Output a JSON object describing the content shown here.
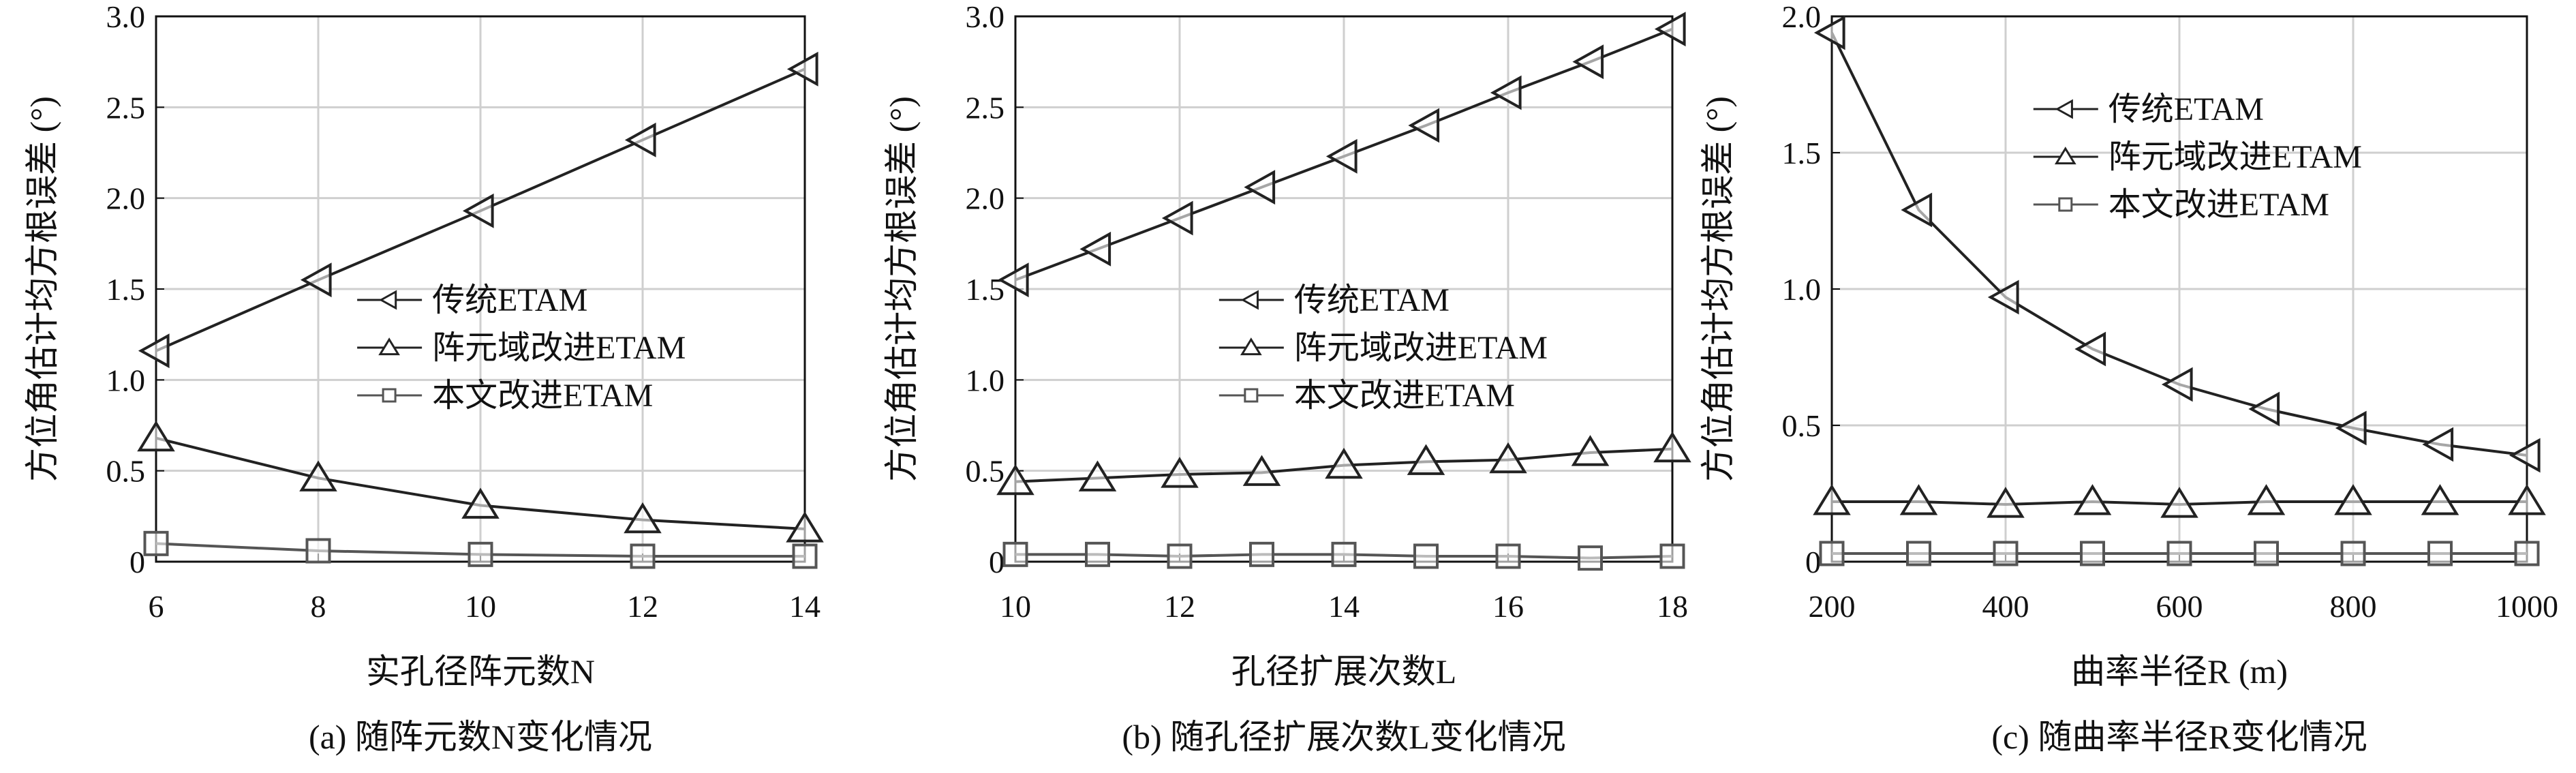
{
  "chart_data": [
    {
      "type": "line",
      "x": [
        6,
        8,
        10,
        12,
        14
      ],
      "xlim": [
        6,
        14
      ],
      "xticks": [
        6,
        8,
        10,
        12,
        14
      ],
      "ylim": [
        0,
        3
      ],
      "yticks": [
        0,
        0.5,
        {
          "value": 1,
          "label": "1.0"
        },
        1.5,
        {
          "value": 2,
          "label": "2.0"
        },
        2.5,
        {
          "value": 3,
          "label": "3.0"
        }
      ],
      "xlabel": "实孔径阵元数N",
      "ylabel": "方位角估计均方根误差 (°)",
      "caption": "(a) 随阵元数N变化情况",
      "grid": true,
      "legend": "center",
      "series": [
        {
          "name": "传统ETAM",
          "color": "#222222",
          "marker": "left-triangle",
          "values": [
            1.16,
            1.55,
            1.93,
            2.32,
            2.71
          ]
        },
        {
          "name": "阵元域改进ETAM",
          "color": "#222222",
          "marker": "up-triangle",
          "values": [
            0.68,
            0.46,
            0.31,
            0.23,
            0.18
          ]
        },
        {
          "name": "本文改进ETAM",
          "color": "#555555",
          "marker": "square",
          "values": [
            0.1,
            0.06,
            0.04,
            0.03,
            0.03
          ]
        }
      ]
    },
    {
      "type": "line",
      "x": [
        10,
        11,
        12,
        13,
        14,
        15,
        16,
        17,
        18
      ],
      "xlim": [
        10,
        18
      ],
      "xticks": [
        10,
        12,
        14,
        16,
        18
      ],
      "ylim": [
        0,
        3
      ],
      "yticks": [
        0,
        0.5,
        {
          "value": 1,
          "label": "1.0"
        },
        1.5,
        {
          "value": 2,
          "label": "2.0"
        },
        2.5,
        {
          "value": 3,
          "label": "3.0"
        }
      ],
      "xlabel": "孔径扩展次数L",
      "ylabel": "方位角估计均方根误差 (°)",
      "caption": "(b) 随孔径扩展次数L变化情况",
      "grid": true,
      "legend": "center",
      "series": [
        {
          "name": "传统ETAM",
          "color": "#222222",
          "marker": "left-triangle",
          "values": [
            1.55,
            1.72,
            1.89,
            2.06,
            2.23,
            2.4,
            2.58,
            2.75,
            2.93
          ]
        },
        {
          "name": "阵元域改进ETAM",
          "color": "#222222",
          "marker": "up-triangle",
          "values": [
            0.44,
            0.46,
            0.48,
            0.49,
            0.53,
            0.55,
            0.56,
            0.6,
            0.62
          ]
        },
        {
          "name": "本文改进ETAM",
          "color": "#555555",
          "marker": "square",
          "values": [
            0.04,
            0.04,
            0.03,
            0.04,
            0.04,
            0.03,
            0.03,
            0.02,
            0.03
          ]
        }
      ]
    },
    {
      "type": "line",
      "x": [
        200,
        300,
        400,
        500,
        600,
        700,
        800,
        900,
        1000
      ],
      "xlim": [
        200,
        1000
      ],
      "xticks": [
        200,
        400,
        600,
        800,
        1000
      ],
      "ylim": [
        0,
        2
      ],
      "yticks": [
        0,
        0.5,
        {
          "value": 1,
          "label": "1.0"
        },
        1.5,
        {
          "value": 2,
          "label": "2.0"
        }
      ],
      "xlabel": "曲率半径R (m)",
      "ylabel": "方位角估计均方根误差 (°)",
      "caption": "(c) 随曲率半径R变化情况",
      "grid": true,
      "legend": "upper right",
      "series": [
        {
          "name": "传统ETAM",
          "color": "#222222",
          "marker": "left-triangle",
          "values": [
            1.94,
            1.29,
            0.97,
            0.78,
            0.65,
            0.56,
            0.49,
            0.43,
            0.39
          ]
        },
        {
          "name": "阵元域改进ETAM",
          "color": "#222222",
          "marker": "up-triangle",
          "values": [
            0.22,
            0.22,
            0.21,
            0.22,
            0.21,
            0.22,
            0.22,
            0.22,
            0.22
          ]
        },
        {
          "name": "本文改进ETAM",
          "color": "#555555",
          "marker": "square",
          "values": [
            0.03,
            0.03,
            0.03,
            0.03,
            0.03,
            0.03,
            0.03,
            0.03,
            0.03
          ]
        }
      ]
    }
  ]
}
